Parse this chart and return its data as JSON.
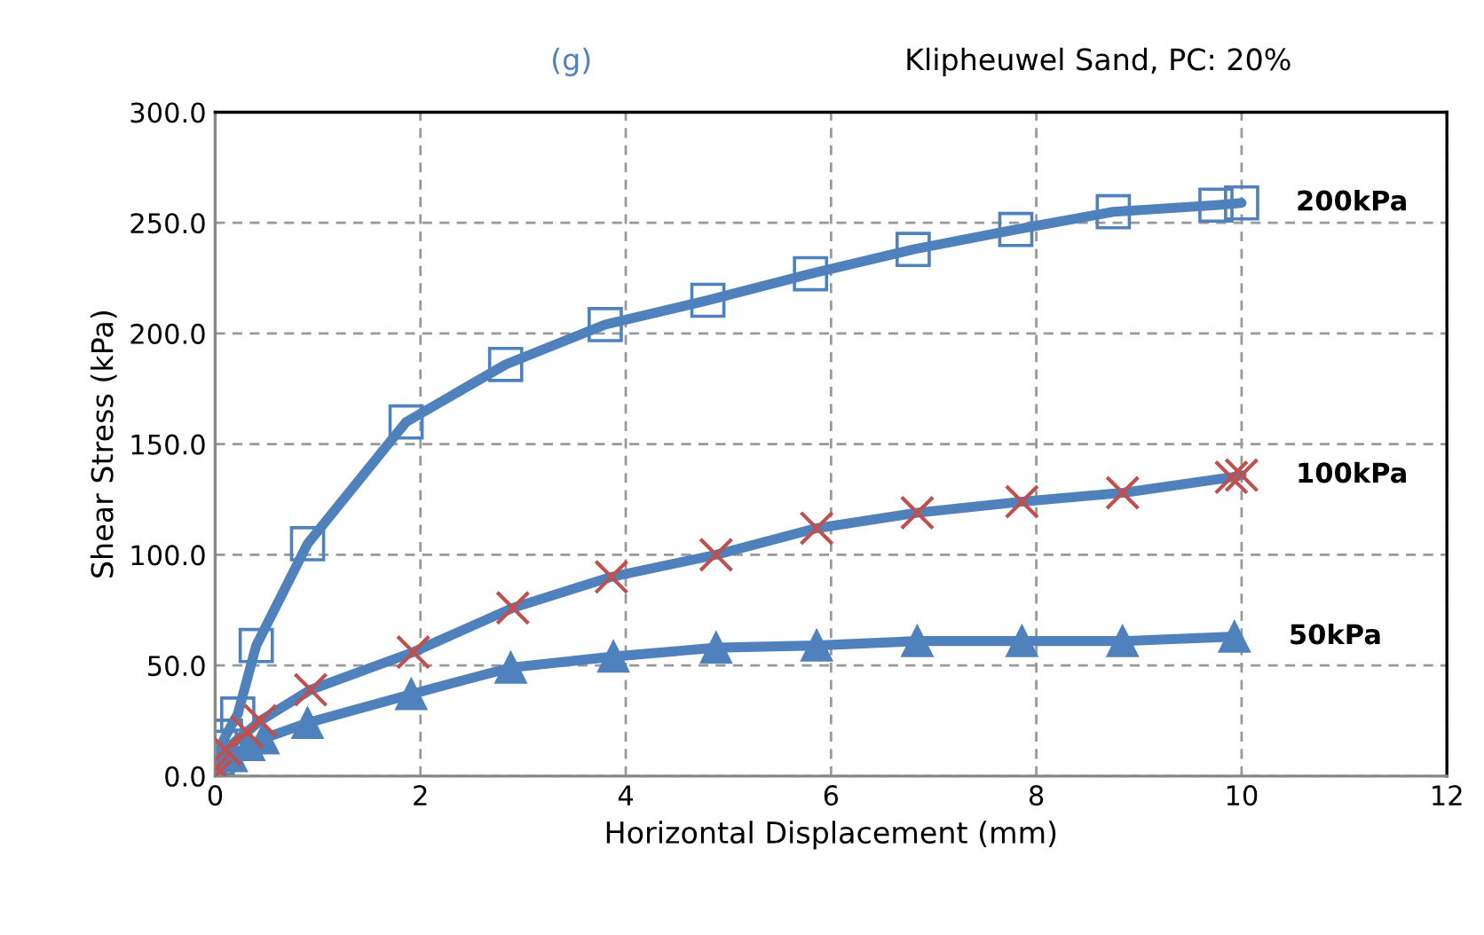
{
  "chart_data": {
    "type": "line",
    "title": "(g)",
    "subtitle": "Klipheuwel Sand, PC: 20%",
    "xlabel": "Horizontal Displacement (mm)",
    "ylabel": "Shear Stress (kPa)",
    "xlim": [
      0,
      12
    ],
    "xticks": [
      0,
      2,
      4,
      6,
      8,
      10,
      12
    ],
    "ylim": [
      0,
      300
    ],
    "yticks": [
      {
        "value": 0,
        "label": "0.0"
      },
      {
        "value": 50,
        "label": "50.0"
      },
      {
        "value": 100,
        "label": "100.0"
      },
      {
        "value": 150,
        "label": "150.0"
      },
      {
        "value": 200,
        "label": "200.0"
      },
      {
        "value": 250,
        "label": "250.0"
      },
      {
        "value": 300,
        "label": "300.0"
      }
    ],
    "grid": true,
    "legend": false,
    "line_style": "solid",
    "series": [
      {
        "name": "200kPa",
        "color": "#4f81bd",
        "marker": "square",
        "x": [
          0,
          0.02,
          0.05,
          0.1,
          0.22,
          0.4,
          0.9,
          1.86,
          2.83,
          3.8,
          4.8,
          5.8,
          6.8,
          7.8,
          8.75,
          9.75,
          10
        ],
        "values": [
          0,
          8,
          13,
          18,
          28,
          59,
          105,
          160,
          186,
          204,
          215,
          227,
          238,
          247,
          255,
          258,
          259
        ]
      },
      {
        "name": "100kPa",
        "color": "#4f81bd",
        "colors": [
          "#c0504d",
          "#c0504d",
          "#c0504d",
          "#c0504d",
          "#c0504d",
          "#c0504d",
          "#c0504d",
          "#c0504d",
          "#c0504d",
          "#c0504d",
          "#c0504d",
          "#c0504d",
          "#c0504d",
          "#c0504d",
          "#c0504d",
          "#c0504d"
        ],
        "marker": "cross",
        "x": [
          0,
          0.01,
          0.1,
          0.31,
          0.44,
          0.93,
          1.93,
          2.9,
          3.86,
          4.88,
          5.86,
          6.84,
          7.86,
          8.84,
          9.9,
          10
        ],
        "values": [
          0,
          4,
          12,
          20,
          25,
          39,
          56,
          76,
          90,
          100,
          112,
          119,
          124,
          128,
          135,
          136
        ]
      },
      {
        "name": "50kPa",
        "color": "#4f81bd",
        "marker": "triangle",
        "x": [
          0,
          0.02,
          0.16,
          0.33,
          0.47,
          0.9,
          1.91,
          2.88,
          3.88,
          4.88,
          5.86,
          6.84,
          7.86,
          8.84,
          9.93
        ],
        "values": [
          0,
          3,
          9,
          14,
          17,
          24,
          37,
          49,
          54,
          58,
          59,
          61,
          61,
          61,
          63
        ]
      }
    ]
  }
}
